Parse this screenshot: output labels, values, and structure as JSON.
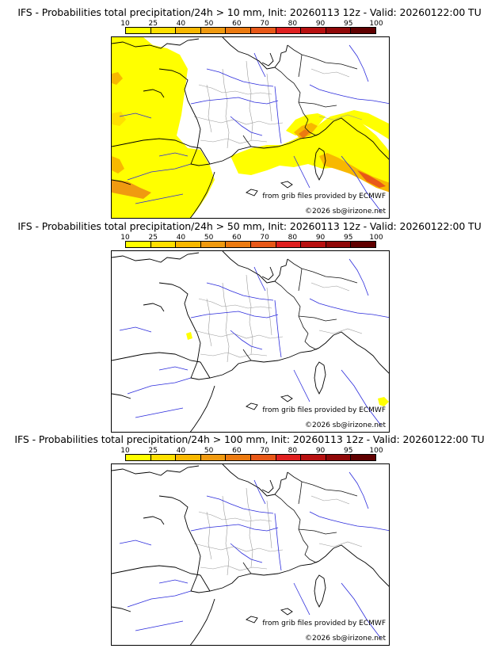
{
  "colorbar": {
    "ticks": [
      "10",
      "25",
      "40",
      "50",
      "60",
      "70",
      "80",
      "90",
      "95",
      "100"
    ],
    "colors": [
      "#ffff00",
      "#ffe000",
      "#f8b800",
      "#f09a10",
      "#ec7a10",
      "#e85818",
      "#e02020",
      "#b81010",
      "#900808",
      "#600000"
    ]
  },
  "panels": [
    {
      "title": "IFS - Probabilities total precipitation/24h > 10 mm, Init: 20260113 12z - Valid: 20260122:00 TU",
      "credit_source": "from grib files provided by ECMWF",
      "credit_copy": "©2026 sb@irizone.net",
      "precip_level": "high"
    },
    {
      "title": "IFS - Probabilities total precipitation/24h > 50 mm, Init: 20260113 12z - Valid: 20260122:00 TU",
      "credit_source": "from grib files provided by ECMWF",
      "credit_copy": "©2026 sb@irizone.net",
      "precip_level": "low"
    },
    {
      "title": "IFS - Probabilities total precipitation/24h > 100 mm, Init: 20260113 12z - Valid: 20260122:00 TU",
      "credit_source": "from grib files provided by ECMWF",
      "credit_copy": "©2026 sb@irizone.net",
      "precip_level": "none"
    }
  ]
}
